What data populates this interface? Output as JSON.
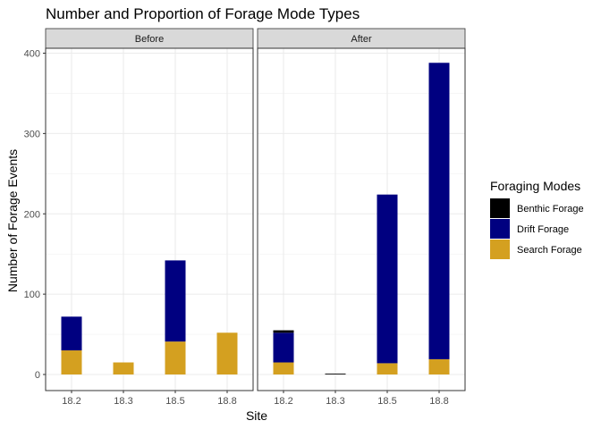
{
  "chart_data": {
    "type": "bar",
    "stacked": true,
    "title": "Number and Proportion of Forage Mode Types",
    "xlabel": "Site",
    "ylabel": "Number of Forage Events",
    "ylim": [
      0,
      405
    ],
    "yticks": [
      0,
      100,
      200,
      300,
      400
    ],
    "grid": true,
    "legend": {
      "title": "Foraging Modes",
      "position": "right",
      "items": [
        "Benthic Forage",
        "Drift Forage",
        "Search Forage"
      ]
    },
    "colors": {
      "Benthic Forage": "#000000",
      "Drift Forage": "#000080",
      "Search Forage": "#D4A020"
    },
    "categories": [
      "18.2",
      "18.3",
      "18.5",
      "18.8"
    ],
    "panels": [
      {
        "label": "Before",
        "series": [
          {
            "name": "Search Forage",
            "values": [
              30,
              15,
              41,
              52
            ]
          },
          {
            "name": "Drift Forage",
            "values": [
              42,
              0,
              101,
              0
            ]
          },
          {
            "name": "Benthic Forage",
            "values": [
              0,
              0,
              0,
              0
            ]
          }
        ]
      },
      {
        "label": "After",
        "series": [
          {
            "name": "Search Forage",
            "values": [
              15,
              0,
              14,
              19
            ]
          },
          {
            "name": "Drift Forage",
            "values": [
              37,
              0,
              210,
              369
            ]
          },
          {
            "name": "Benthic Forage",
            "values": [
              3,
              1,
              0,
              0
            ]
          }
        ]
      }
    ]
  }
}
